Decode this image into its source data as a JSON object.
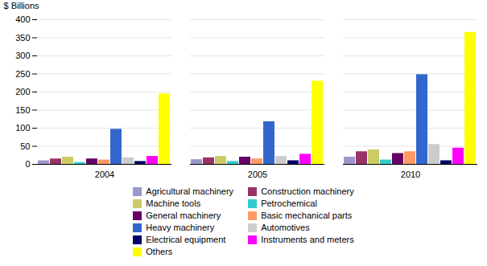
{
  "chart_data": {
    "type": "bar",
    "categories": [
      "2004",
      "2005",
      "2010"
    ],
    "series": [
      {
        "name": "Agricultural machinery",
        "color": "#9999CC",
        "values": [
          10,
          13,
          20
        ]
      },
      {
        "name": "Construction machinery",
        "color": "#993366",
        "values": [
          15,
          18,
          35
        ]
      },
      {
        "name": "Machine tools",
        "color": "#CCCC66",
        "values": [
          20,
          22,
          40
        ]
      },
      {
        "name": "Petrochemical",
        "color": "#33CCCC",
        "values": [
          5,
          8,
          12
        ]
      },
      {
        "name": "General machinery",
        "color": "#660066",
        "values": [
          15,
          20,
          30
        ]
      },
      {
        "name": "Basic mechanical parts",
        "color": "#FF9966",
        "values": [
          12,
          15,
          35
        ]
      },
      {
        "name": "Heavy machinery",
        "color": "#3366CC",
        "values": [
          97,
          118,
          248
        ]
      },
      {
        "name": "Automotives",
        "color": "#CCCCCC",
        "values": [
          18,
          22,
          55
        ]
      },
      {
        "name": "Electrical equipment",
        "color": "#000066",
        "values": [
          8,
          10,
          10
        ]
      },
      {
        "name": "Instruments and meters",
        "color": "#FF00FF",
        "values": [
          22,
          28,
          45
        ]
      },
      {
        "name": "Others",
        "color": "#FFFF00",
        "values": [
          195,
          230,
          365
        ]
      }
    ],
    "ylabel": "$ Billions",
    "ylim": [
      0,
      400
    ],
    "yticks": [
      0,
      50,
      100,
      150,
      200,
      250,
      300,
      350,
      400
    ],
    "grid": true,
    "legend": "bottom"
  }
}
